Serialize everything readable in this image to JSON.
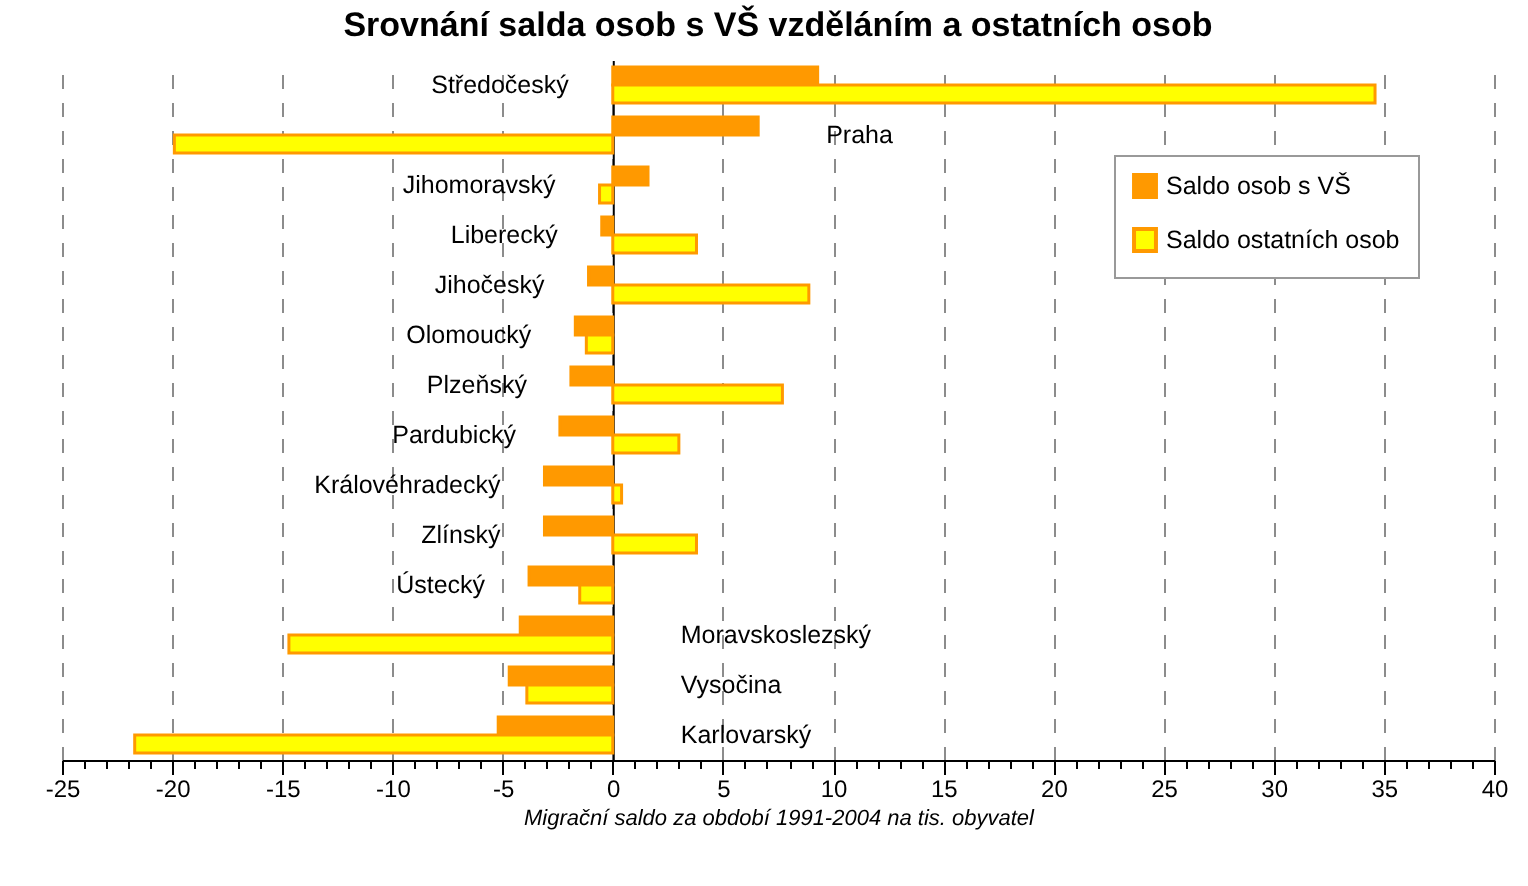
{
  "chart_data": {
    "type": "bar",
    "orientation": "horizontal",
    "title": "Srovnání salda osob s VŠ vzděláním a ostatních osob",
    "xlabel": "Migrační saldo za období 1991-2004 na tis. obyvatel",
    "categories": [
      "Středočeský",
      "Praha",
      "Jihomoravský",
      "Liberecký",
      "Jihočeský",
      "Olomoucký",
      "Plzeňský",
      "Pardubický",
      "Královéhradecký",
      "Zlínský",
      "Ústecký",
      "Moravskoslezský",
      "Vysočina",
      "Karlovarský"
    ],
    "series": [
      {
        "name": "Saldo osob s VŠ",
        "color": "#ff9900",
        "values": [
          9.3,
          6.6,
          1.6,
          -0.5,
          -1.1,
          -1.7,
          -1.9,
          -2.4,
          -3.1,
          -3.1,
          -3.8,
          -4.2,
          -4.7,
          -5.2
        ]
      },
      {
        "name": "Saldo ostatních osob",
        "color": "#ffff00",
        "values": [
          34.6,
          -19.9,
          -0.6,
          3.8,
          8.9,
          -1.2,
          7.7,
          3.0,
          0.4,
          3.8,
          -1.5,
          -14.7,
          -3.9,
          -21.7
        ]
      }
    ],
    "xlim": [
      -25,
      40
    ],
    "xticks": [
      -25,
      {
        "value": -24,
        "label": null
      },
      {
        "value": -23,
        "label": null
      },
      {
        "value": -22,
        "label": null
      },
      {
        "value": -21,
        "label": null
      },
      -20,
      {
        "value": -19,
        "label": null
      },
      {
        "value": -18,
        "label": null
      },
      {
        "value": -17,
        "label": null
      },
      {
        "value": -16,
        "label": null
      },
      -15,
      {
        "value": -14,
        "label": null
      },
      {
        "value": -13,
        "label": null
      },
      {
        "value": -12,
        "label": null
      },
      {
        "value": -11,
        "label": null
      },
      -10,
      {
        "value": -9,
        "label": null
      },
      {
        "value": -8,
        "label": null
      },
      {
        "value": -7,
        "label": null
      },
      {
        "value": -6,
        "label": null
      },
      -5,
      {
        "value": -4,
        "label": null
      },
      {
        "value": -3,
        "label": null
      },
      {
        "value": -2,
        "label": null
      },
      {
        "value": -1,
        "label": null
      },
      0,
      {
        "value": 1,
        "label": null
      },
      {
        "value": 2,
        "label": null
      },
      {
        "value": 3,
        "label": null
      },
      {
        "value": 4,
        "label": null
      },
      5,
      {
        "value": 6,
        "label": null
      },
      {
        "value": 7,
        "label": null
      },
      {
        "value": 8,
        "label": null
      },
      {
        "value": 9,
        "label": null
      },
      10,
      {
        "value": 11,
        "label": null
      },
      {
        "value": 12,
        "label": null
      },
      {
        "value": 13,
        "label": null
      },
      {
        "value": 14,
        "label": null
      },
      15,
      {
        "value": 16,
        "label": null
      },
      {
        "value": 17,
        "label": null
      },
      {
        "value": 18,
        "label": null
      },
      {
        "value": 19,
        "label": null
      },
      20,
      {
        "value": 21,
        "label": null
      },
      {
        "value": 22,
        "label": null
      },
      {
        "value": 23,
        "label": null
      },
      {
        "value": 24,
        "label": null
      },
      25,
      {
        "value": 26,
        "label": null
      },
      {
        "value": 27,
        "label": null
      },
      {
        "value": 28,
        "label": null
      },
      {
        "value": 29,
        "label": null
      },
      30,
      {
        "value": 31,
        "label": null
      },
      {
        "value": 32,
        "label": null
      },
      {
        "value": 33,
        "label": null
      },
      {
        "value": 34,
        "label": null
      },
      35,
      {
        "value": 36,
        "label": null
      },
      {
        "value": 37,
        "label": null
      },
      {
        "value": 38,
        "label": null
      },
      {
        "value": 39,
        "label": null
      },
      40
    ],
    "grid": "x",
    "legend": "top right"
  }
}
